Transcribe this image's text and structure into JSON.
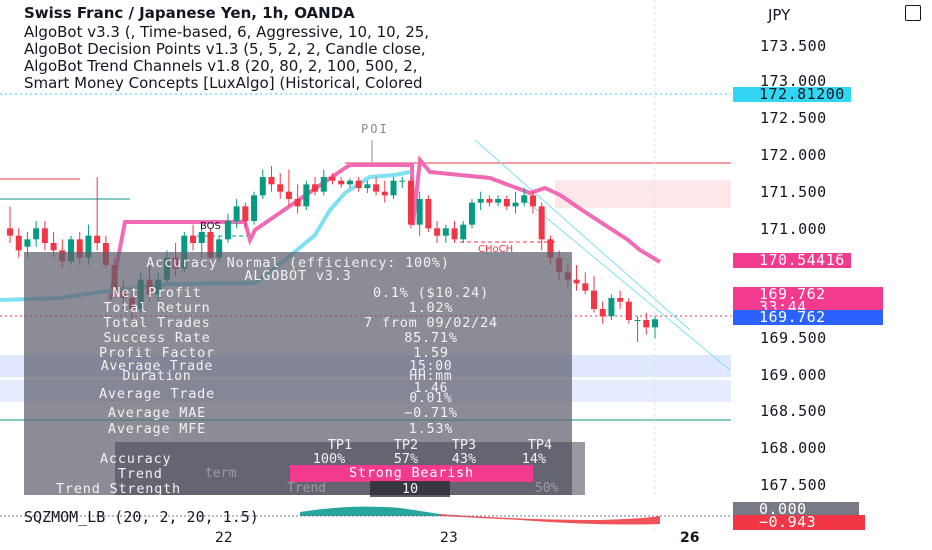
{
  "header": {
    "symbol_line": "Swiss Franc / Japanese Yen, 1h, OANDA",
    "indicator_lines": [
      "AlgoBot v3.3 (, Time-based, 6, Aggressive, 10, 10, 25,",
      "AlgoBot Decision Points v1.3 (5, 5, 2, 2, Candle close,",
      "AlgoBot Trend Channels v1.8 (20, 80, 2, 100, 500, 2,",
      "Smart Money Concepts [LuxAlgo] (Historical, Colored"
    ]
  },
  "axis": {
    "currency": "JPY",
    "price_labels": [
      "173.500",
      "173.000",
      "172.500",
      "172.000",
      "171.500",
      "171.000",
      "169.500",
      "169.000",
      "168.500",
      "168.000",
      "167.500"
    ],
    "date_labels": [
      "22",
      "23",
      "26"
    ]
  },
  "tags": {
    "cyan": "172.81200",
    "pink": "170.54416",
    "price": "169.762",
    "countdown": "33:44",
    "price_blue": "169.762",
    "osc_zero": "0.000",
    "osc_val": "−0.943"
  },
  "markers": {
    "poi": "POI",
    "bos": "BOS",
    "choch": "CHoCH"
  },
  "stats": {
    "title": "Accuracy Normal (efficiency: 100%)",
    "subtitle": "ALGOBOT v3.3",
    "rows": [
      {
        "label": "Net Profit",
        "value": "0.1% ($10.24)"
      },
      {
        "label": "Total Return",
        "value": "1.02%"
      },
      {
        "label": "Total Trades",
        "value": "7 from 09/02/24"
      },
      {
        "label": "Success Rate",
        "value": "85.71%"
      },
      {
        "label": "Profit Factor",
        "value": "1.59"
      },
      {
        "label": "Average Trade Duration",
        "value": "15:00 HH:mm"
      },
      {
        "label": "Average Trade",
        "value": "1.46 0.01%"
      },
      {
        "label": "Average MAE",
        "value": "−0.71%"
      },
      {
        "label": "Average MFE",
        "value": "1.53%"
      }
    ],
    "tp_headers": [
      "TP1",
      "TP2",
      "TP3",
      "TP4"
    ],
    "accuracy_label": "Accuracy",
    "accuracy_values": [
      "100%",
      "57%",
      "43%",
      "14%"
    ],
    "trend_label": "Trend",
    "trend_value": "Strong Bearish",
    "trend_strength_label": "Trend Strength",
    "trend_strength_value": "10",
    "ghost_term": "term",
    "ghost_trend": "Trend",
    "ghost_50": "50%"
  },
  "oscillator": {
    "label": "SQZMOM_LB (20, 2, 20, 1.5)"
  },
  "colors": {
    "bull": "#089981",
    "bear": "#f23645",
    "pink": "#f06bb3",
    "cyan": "#7ee0f0",
    "tag_cyan": "#33d6f2",
    "tag_pink": "#f23b8f",
    "tag_blue": "#2962ff"
  },
  "chart_data": {
    "type": "candlestick",
    "title": "Swiss Franc / Japanese Yen, 1h, OANDA",
    "ylim": [
      167.3,
      173.9
    ],
    "xlabels": [
      "22",
      "23",
      "26"
    ],
    "candles": [
      {
        "o": 171.0,
        "h": 171.3,
        "l": 170.8,
        "c": 170.9
      },
      {
        "o": 170.9,
        "h": 171.0,
        "l": 170.6,
        "c": 170.7
      },
      {
        "o": 170.75,
        "h": 170.95,
        "l": 170.6,
        "c": 170.85
      },
      {
        "o": 170.85,
        "h": 171.1,
        "l": 170.75,
        "c": 171.0
      },
      {
        "o": 171.0,
        "h": 171.1,
        "l": 170.7,
        "c": 170.8
      },
      {
        "o": 170.8,
        "h": 170.95,
        "l": 170.6,
        "c": 170.7
      },
      {
        "o": 170.7,
        "h": 170.85,
        "l": 170.45,
        "c": 170.55
      },
      {
        "o": 170.55,
        "h": 170.9,
        "l": 170.5,
        "c": 170.85
      },
      {
        "o": 170.85,
        "h": 170.95,
        "l": 170.5,
        "c": 170.6
      },
      {
        "o": 170.6,
        "h": 171.05,
        "l": 170.5,
        "c": 170.9
      },
      {
        "o": 170.9,
        "h": 171.7,
        "l": 170.7,
        "c": 170.8
      },
      {
        "o": 170.8,
        "h": 170.9,
        "l": 170.45,
        "c": 170.5
      },
      {
        "o": 170.5,
        "h": 170.6,
        "l": 170.05,
        "c": 170.15
      },
      {
        "o": 170.15,
        "h": 170.3,
        "l": 169.9,
        "c": 170.05
      },
      {
        "o": 170.05,
        "h": 170.2,
        "l": 169.75,
        "c": 169.9
      },
      {
        "o": 169.9,
        "h": 170.4,
        "l": 169.85,
        "c": 170.3
      },
      {
        "o": 170.3,
        "h": 170.5,
        "l": 170.0,
        "c": 170.1
      },
      {
        "o": 170.1,
        "h": 170.4,
        "l": 170.0,
        "c": 170.3
      },
      {
        "o": 170.3,
        "h": 170.7,
        "l": 170.25,
        "c": 170.6
      },
      {
        "o": 170.6,
        "h": 170.8,
        "l": 170.35,
        "c": 170.45
      },
      {
        "o": 170.45,
        "h": 170.95,
        "l": 170.4,
        "c": 170.9
      },
      {
        "o": 170.9,
        "h": 171.05,
        "l": 170.7,
        "c": 170.8
      },
      {
        "o": 170.8,
        "h": 171.0,
        "l": 170.6,
        "c": 170.95
      },
      {
        "o": 170.95,
        "h": 171.0,
        "l": 170.5,
        "c": 170.6
      },
      {
        "o": 170.6,
        "h": 170.9,
        "l": 170.55,
        "c": 170.85
      },
      {
        "o": 170.85,
        "h": 171.2,
        "l": 170.8,
        "c": 171.1
      },
      {
        "o": 171.1,
        "h": 171.4,
        "l": 171.0,
        "c": 171.3
      },
      {
        "o": 171.3,
        "h": 171.35,
        "l": 171.0,
        "c": 171.1
      },
      {
        "o": 171.1,
        "h": 171.5,
        "l": 171.05,
        "c": 171.45
      },
      {
        "o": 171.45,
        "h": 171.8,
        "l": 171.4,
        "c": 171.7
      },
      {
        "o": 171.7,
        "h": 171.85,
        "l": 171.5,
        "c": 171.6
      },
      {
        "o": 171.6,
        "h": 171.75,
        "l": 171.4,
        "c": 171.5
      },
      {
        "o": 171.5,
        "h": 171.8,
        "l": 171.3,
        "c": 171.4
      },
      {
        "o": 171.4,
        "h": 171.6,
        "l": 171.2,
        "c": 171.3
      },
      {
        "o": 171.3,
        "h": 171.65,
        "l": 171.25,
        "c": 171.6
      },
      {
        "o": 171.6,
        "h": 171.7,
        "l": 171.45,
        "c": 171.5
      },
      {
        "o": 171.5,
        "h": 171.8,
        "l": 171.45,
        "c": 171.7
      },
      {
        "o": 171.7,
        "h": 171.75,
        "l": 171.6,
        "c": 171.65
      },
      {
        "o": 171.65,
        "h": 171.7,
        "l": 171.55,
        "c": 171.6
      },
      {
        "o": 171.6,
        "h": 171.68,
        "l": 171.55,
        "c": 171.65
      },
      {
        "o": 171.65,
        "h": 171.7,
        "l": 171.5,
        "c": 171.55
      },
      {
        "o": 171.55,
        "h": 171.65,
        "l": 171.48,
        "c": 171.6
      },
      {
        "o": 171.6,
        "h": 171.7,
        "l": 171.45,
        "c": 171.5
      },
      {
        "o": 171.5,
        "h": 171.65,
        "l": 171.35,
        "c": 171.45
      },
      {
        "o": 171.45,
        "h": 171.7,
        "l": 171.4,
        "c": 171.65
      },
      {
        "o": 171.65,
        "h": 171.7,
        "l": 171.55,
        "c": 171.65
      },
      {
        "o": 171.65,
        "h": 171.7,
        "l": 171.0,
        "c": 171.05
      },
      {
        "o": 171.05,
        "h": 171.5,
        "l": 170.9,
        "c": 171.4
      },
      {
        "o": 171.4,
        "h": 171.45,
        "l": 170.95,
        "c": 171.0
      },
      {
        "o": 171.0,
        "h": 171.1,
        "l": 170.8,
        "c": 170.9
      },
      {
        "o": 170.9,
        "h": 171.05,
        "l": 170.8,
        "c": 171.0
      },
      {
        "o": 171.0,
        "h": 171.1,
        "l": 170.8,
        "c": 170.85
      },
      {
        "o": 170.85,
        "h": 171.1,
        "l": 170.8,
        "c": 171.05
      },
      {
        "o": 171.05,
        "h": 171.4,
        "l": 171.0,
        "c": 171.35
      },
      {
        "o": 171.35,
        "h": 171.5,
        "l": 171.25,
        "c": 171.4
      },
      {
        "o": 171.4,
        "h": 171.45,
        "l": 171.3,
        "c": 171.35
      },
      {
        "o": 171.35,
        "h": 171.45,
        "l": 171.3,
        "c": 171.4
      },
      {
        "o": 171.4,
        "h": 171.45,
        "l": 171.25,
        "c": 171.3
      },
      {
        "o": 171.3,
        "h": 171.5,
        "l": 171.2,
        "c": 171.35
      },
      {
        "o": 171.35,
        "h": 171.55,
        "l": 171.3,
        "c": 171.45
      },
      {
        "o": 171.45,
        "h": 171.5,
        "l": 171.2,
        "c": 171.3
      },
      {
        "o": 171.3,
        "h": 171.35,
        "l": 170.7,
        "c": 170.85
      },
      {
        "o": 170.85,
        "h": 170.9,
        "l": 170.5,
        "c": 170.6
      },
      {
        "o": 170.6,
        "h": 170.7,
        "l": 170.3,
        "c": 170.4
      },
      {
        "o": 170.4,
        "h": 170.5,
        "l": 170.2,
        "c": 170.3
      },
      {
        "o": 170.3,
        "h": 170.5,
        "l": 170.15,
        "c": 170.25
      },
      {
        "o": 170.25,
        "h": 170.4,
        "l": 170.1,
        "c": 170.15
      },
      {
        "o": 170.15,
        "h": 170.35,
        "l": 169.85,
        "c": 169.9
      },
      {
        "o": 169.9,
        "h": 170.0,
        "l": 169.7,
        "c": 169.8
      },
      {
        "o": 169.8,
        "h": 170.1,
        "l": 169.75,
        "c": 170.05
      },
      {
        "o": 170.05,
        "h": 170.15,
        "l": 169.9,
        "c": 170.0
      },
      {
        "o": 170.0,
        "h": 170.05,
        "l": 169.7,
        "c": 169.75
      },
      {
        "o": 169.75,
        "h": 169.8,
        "l": 169.45,
        "c": 169.75
      },
      {
        "o": 169.75,
        "h": 169.85,
        "l": 169.55,
        "c": 169.65
      },
      {
        "o": 169.65,
        "h": 169.8,
        "l": 169.5,
        "c": 169.76
      }
    ]
  }
}
